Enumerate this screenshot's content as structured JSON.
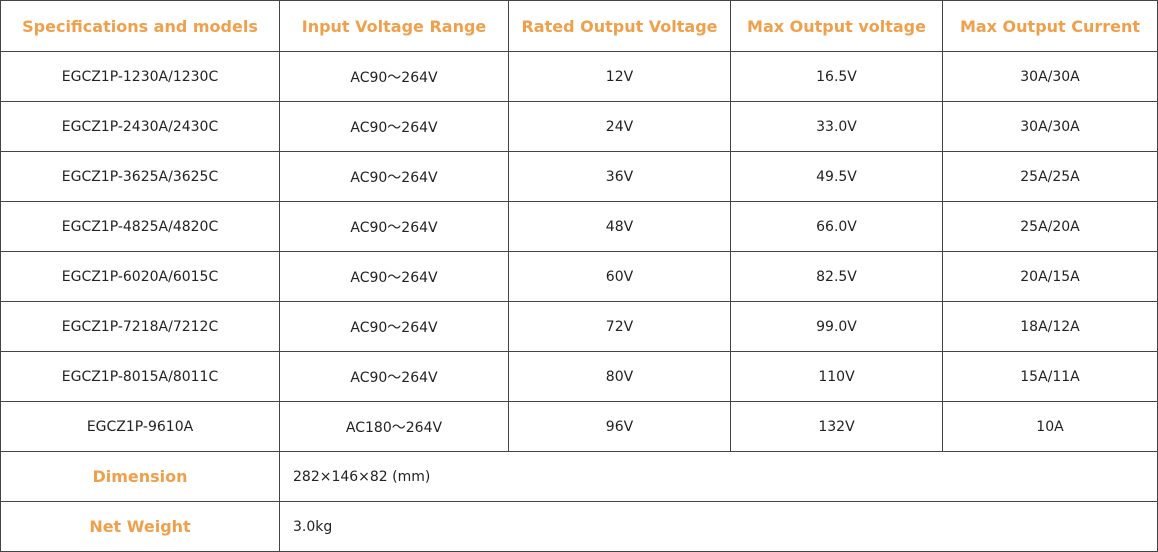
{
  "table": {
    "headers": [
      "Specifications and models",
      "Input Voltage Range",
      "Rated Output Voltage",
      "Max Output voltage",
      "Max Output Current"
    ],
    "rows": [
      [
        "EGCZ1P-1230A/1230C",
        "AC90～264V",
        "12V",
        "16.5V",
        "30A/30A"
      ],
      [
        "EGCZ1P-2430A/2430C",
        "AC90～264V",
        "24V",
        "33.0V",
        "30A/30A"
      ],
      [
        "EGCZ1P-3625A/3625C",
        "AC90～264V",
        "36V",
        "49.5V",
        "25A/25A"
      ],
      [
        "EGCZ1P-4825A/4820C",
        "AC90～264V",
        "48V",
        "66.0V",
        "25A/20A"
      ],
      [
        "EGCZ1P-6020A/6015C",
        "AC90～264V",
        "60V",
        "82.5V",
        "20A/15A"
      ],
      [
        "EGCZ1P-7218A/7212C",
        "AC90～264V",
        "72V",
        "99.0V",
        "18A/12A"
      ],
      [
        "EGCZ1P-8015A/8011C",
        "AC90～264V",
        "80V",
        "110V",
        "15A/11A"
      ],
      [
        "EGCZ1P-9610A",
        "AC180～264V",
        "96V",
        "132V",
        "10A"
      ]
    ],
    "footer_rows": [
      {
        "label": "Dimension",
        "value": "282×146×82 (mm)"
      },
      {
        "label": "Net Weight",
        "value": "3.0kg"
      }
    ]
  }
}
